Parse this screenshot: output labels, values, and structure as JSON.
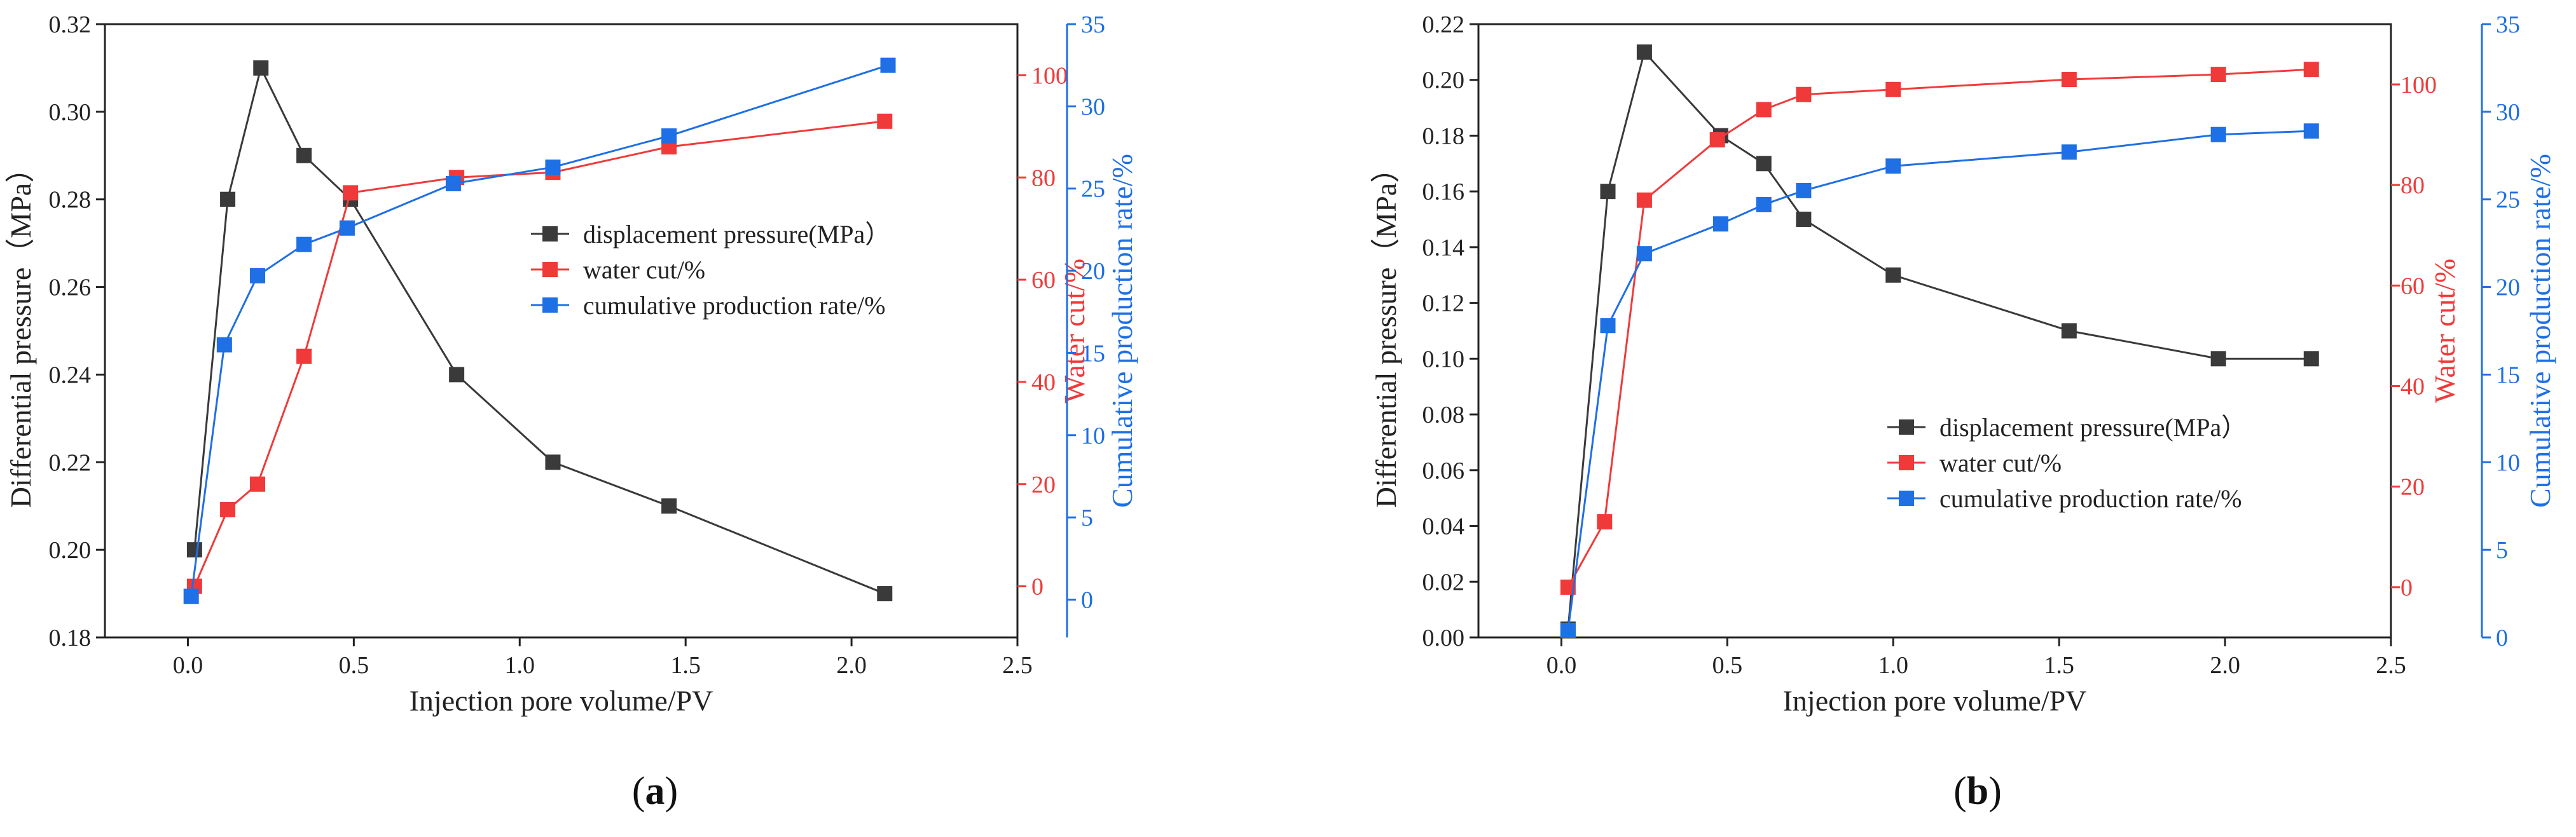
{
  "colors": {
    "pressure": "#3a3a3a",
    "water": "#f03a3a",
    "production": "#1f6fe5",
    "axis": "#222222"
  },
  "chart_data": [
    {
      "id": "a",
      "type": "line",
      "caption_open": "(",
      "caption_letter": "a",
      "caption_close": ")",
      "xlabel": "Injection pore volume/PV",
      "ylabel_left": "Differential pressure（MPa）",
      "ylabel_right1": "Water cut/%",
      "ylabel_right2": "Cumulative production rate/%",
      "xlim": [
        -0.25,
        2.5
      ],
      "xticks": [
        0.0,
        0.5,
        1.0,
        1.5,
        2.0,
        2.5
      ],
      "xtick_labels": [
        "0.0",
        "0.5",
        "1.0",
        "1.5",
        "2.0",
        "2.5"
      ],
      "ylim_left": [
        0.18,
        0.32
      ],
      "yticks_left": [
        0.18,
        0.2,
        0.22,
        0.24,
        0.26,
        0.28,
        0.3,
        0.32
      ],
      "ytick_labels_left": [
        "0.18",
        "0.20",
        "0.22",
        "0.24",
        "0.26",
        "0.28",
        "0.30",
        "0.32"
      ],
      "ylim_right1": [
        -10,
        110
      ],
      "yticks_right1": [
        0,
        20,
        40,
        60,
        80,
        100
      ],
      "ytick_labels_right1": [
        "0",
        "20",
        "40",
        "60",
        "80",
        "100"
      ],
      "ylim_right2": [
        -2.3,
        35
      ],
      "yticks_right2": [
        0,
        5,
        10,
        15,
        20,
        25,
        30,
        35
      ],
      "ytick_labels_right2": [
        "0",
        "5",
        "10",
        "15",
        "20",
        "25",
        "30",
        "35"
      ],
      "legend_position": "center-right",
      "series": [
        {
          "name": "displacement pressure(MPa）",
          "axis": "left",
          "color_key": "pressure",
          "x": [
            0.02,
            0.12,
            0.22,
            0.35,
            0.49,
            0.81,
            1.1,
            1.45,
            2.1
          ],
          "y": [
            0.2,
            0.28,
            0.31,
            0.29,
            0.28,
            0.24,
            0.22,
            0.21,
            0.19
          ]
        },
        {
          "name": "water cut/%",
          "axis": "right1",
          "color_key": "water",
          "x": [
            0.02,
            0.12,
            0.21,
            0.35,
            0.49,
            0.81,
            1.1,
            1.45,
            2.1
          ],
          "y": [
            0,
            15,
            20,
            45,
            77,
            80,
            81,
            86,
            91
          ]
        },
        {
          "name": "cumulative production rate/%",
          "axis": "right2",
          "color_key": "production",
          "x": [
            0.01,
            0.11,
            0.21,
            0.35,
            0.48,
            0.8,
            1.1,
            1.45,
            2.11
          ],
          "y": [
            0.2,
            15.5,
            19.7,
            21.6,
            22.6,
            25.3,
            26.3,
            28.2,
            32.5
          ]
        }
      ]
    },
    {
      "id": "b",
      "type": "line",
      "caption_open": "(",
      "caption_letter": "b",
      "caption_close": ")",
      "xlabel": "Injection pore volume/PV",
      "ylabel_left": "Differential pressure（MPa）",
      "ylabel_right1": "Water cut/%",
      "ylabel_right2": "Cumulative production rate/%",
      "xlim": [
        -0.25,
        2.5
      ],
      "xticks": [
        0.0,
        0.5,
        1.0,
        1.5,
        2.0,
        2.5
      ],
      "xtick_labels": [
        "0.0",
        "0.5",
        "1.0",
        "1.5",
        "2.0",
        "2.5"
      ],
      "ylim_left": [
        0.0,
        0.22
      ],
      "yticks_left": [
        0.0,
        0.02,
        0.04,
        0.06,
        0.08,
        0.1,
        0.12,
        0.14,
        0.16,
        0.18,
        0.2,
        0.22
      ],
      "ytick_labels_left": [
        "0.00",
        "0.02",
        "0.04",
        "0.06",
        "0.08",
        "0.10",
        "0.12",
        "0.14",
        "0.16",
        "0.18",
        "0.20",
        "0.22"
      ],
      "ylim_right1": [
        -10,
        112
      ],
      "yticks_right1": [
        0,
        20,
        40,
        60,
        80,
        100
      ],
      "ytick_labels_right1": [
        "0",
        "20",
        "40",
        "60",
        "80",
        "100"
      ],
      "ylim_right2": [
        0,
        35
      ],
      "yticks_right2": [
        0,
        5,
        10,
        15,
        20,
        25,
        30,
        35
      ],
      "ytick_labels_right2": [
        "0",
        "5",
        "10",
        "15",
        "20",
        "25",
        "30",
        "35"
      ],
      "legend_position": "lower-right",
      "series": [
        {
          "name": "displacement pressure(MPa）",
          "axis": "left",
          "color_key": "pressure",
          "x": [
            0.02,
            0.14,
            0.25,
            0.48,
            0.61,
            0.73,
            1.0,
            1.53,
            1.98,
            2.26
          ],
          "y": [
            0.003,
            0.16,
            0.21,
            0.18,
            0.17,
            0.15,
            0.13,
            0.11,
            0.1,
            0.1
          ]
        },
        {
          "name": "water cut/%",
          "axis": "right1",
          "color_key": "water",
          "x": [
            0.02,
            0.13,
            0.25,
            0.47,
            0.61,
            0.73,
            1.0,
            1.53,
            1.98,
            2.26
          ],
          "y": [
            0,
            13,
            77,
            89,
            95,
            98,
            99,
            101,
            102,
            103
          ]
        },
        {
          "name": "cumulative production rate/%",
          "axis": "right2",
          "color_key": "production",
          "x": [
            0.02,
            0.14,
            0.25,
            0.48,
            0.61,
            0.73,
            1.0,
            1.53,
            1.98,
            2.26
          ],
          "y": [
            0.4,
            17.8,
            21.9,
            23.6,
            24.7,
            25.5,
            26.9,
            27.7,
            28.7,
            28.9
          ]
        }
      ]
    }
  ]
}
